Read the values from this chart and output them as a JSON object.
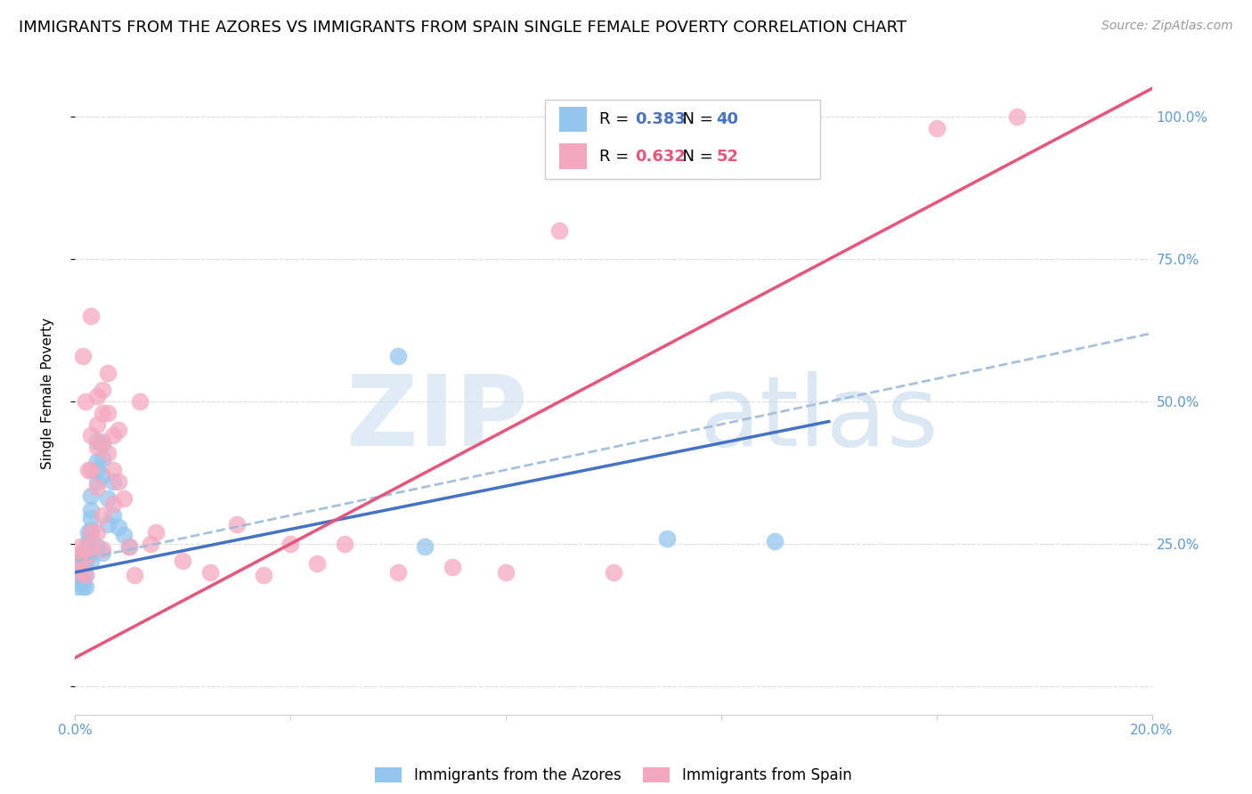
{
  "title": "IMMIGRANTS FROM THE AZORES VS IMMIGRANTS FROM SPAIN SINGLE FEMALE POVERTY CORRELATION CHART",
  "source": "Source: ZipAtlas.com",
  "ylabel_left": "Single Female Poverty",
  "watermark_zip": "ZIP",
  "watermark_atlas": "atlas",
  "azores_color": "#93C6EE",
  "spain_color": "#F4A8BE",
  "azores_line_color": "#4472C4",
  "spain_line_color": "#E8547A",
  "dashed_line_color": "#9DBBD8",
  "R_azores": 0.383,
  "N_azores": 40,
  "R_spain": 0.632,
  "N_spain": 52,
  "xlim": [
    0.0,
    0.2
  ],
  "ylim": [
    -0.05,
    1.08
  ],
  "yticks": [
    0.0,
    0.25,
    0.5,
    0.75,
    1.0
  ],
  "xticks": [
    0.0,
    0.04,
    0.08,
    0.12,
    0.16,
    0.2
  ],
  "background_color": "#FFFFFF",
  "grid_color": "#DDDDDD",
  "right_tick_color": "#5B9BD5",
  "bottom_tick_color": "#5B9BD5",
  "title_fontsize": 13,
  "axis_label_fontsize": 11,
  "tick_fontsize": 11,
  "source_fontsize": 10,
  "azores_x": [
    0.0005,
    0.001,
    0.001,
    0.001,
    0.0015,
    0.0015,
    0.0015,
    0.002,
    0.002,
    0.002,
    0.002,
    0.0025,
    0.0025,
    0.0025,
    0.003,
    0.003,
    0.003,
    0.003,
    0.003,
    0.003,
    0.004,
    0.004,
    0.004,
    0.004,
    0.004,
    0.005,
    0.005,
    0.005,
    0.005,
    0.006,
    0.006,
    0.007,
    0.007,
    0.008,
    0.009,
    0.01,
    0.06,
    0.065,
    0.11,
    0.13
  ],
  "azores_y": [
    0.175,
    0.215,
    0.195,
    0.23,
    0.185,
    0.22,
    0.175,
    0.24,
    0.22,
    0.195,
    0.175,
    0.27,
    0.255,
    0.23,
    0.335,
    0.31,
    0.295,
    0.275,
    0.26,
    0.22,
    0.38,
    0.43,
    0.395,
    0.36,
    0.245,
    0.425,
    0.4,
    0.37,
    0.235,
    0.33,
    0.285,
    0.36,
    0.3,
    0.28,
    0.265,
    0.245,
    0.58,
    0.245,
    0.26,
    0.255
  ],
  "spain_x": [
    0.0005,
    0.001,
    0.001,
    0.0015,
    0.0015,
    0.002,
    0.002,
    0.002,
    0.0025,
    0.003,
    0.003,
    0.003,
    0.003,
    0.003,
    0.004,
    0.004,
    0.004,
    0.004,
    0.004,
    0.005,
    0.005,
    0.005,
    0.005,
    0.005,
    0.006,
    0.006,
    0.006,
    0.007,
    0.007,
    0.007,
    0.008,
    0.008,
    0.009,
    0.01,
    0.011,
    0.012,
    0.014,
    0.015,
    0.02,
    0.025,
    0.03,
    0.035,
    0.04,
    0.045,
    0.05,
    0.06,
    0.07,
    0.08,
    0.09,
    0.1,
    0.16,
    0.175
  ],
  "spain_y": [
    0.22,
    0.245,
    0.2,
    0.58,
    0.235,
    0.5,
    0.225,
    0.195,
    0.38,
    0.65,
    0.44,
    0.38,
    0.27,
    0.245,
    0.51,
    0.46,
    0.42,
    0.35,
    0.27,
    0.52,
    0.48,
    0.43,
    0.3,
    0.24,
    0.55,
    0.48,
    0.41,
    0.44,
    0.38,
    0.32,
    0.45,
    0.36,
    0.33,
    0.245,
    0.195,
    0.5,
    0.25,
    0.27,
    0.22,
    0.2,
    0.285,
    0.195,
    0.25,
    0.215,
    0.25,
    0.2,
    0.21,
    0.2,
    0.8,
    0.2,
    0.98,
    1.0
  ],
  "azores_line_x0": 0.0,
  "azores_line_y0": 0.2,
  "azores_line_x1": 0.14,
  "azores_line_y1": 0.465,
  "spain_line_x0": 0.0,
  "spain_line_y0": 0.05,
  "spain_line_x1": 0.2,
  "spain_line_y1": 1.05,
  "dashed_line_x0": 0.0,
  "dashed_line_y0": 0.22,
  "dashed_line_x1": 0.2,
  "dashed_line_y1": 0.62
}
